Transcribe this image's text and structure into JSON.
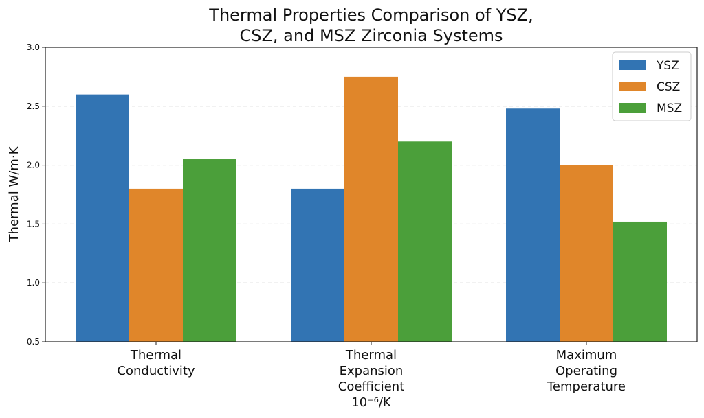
{
  "chart_data": {
    "type": "bar",
    "title_lines": [
      "Thermal Properties Comparison of YSZ,",
      "CSZ, and MSZ Zirconia Systems"
    ],
    "ylabel": "Thermal W/m·K",
    "xlabel": "",
    "ylim": [
      0.5,
      3.0
    ],
    "yticks": [
      "0.5",
      "1.0",
      "1.5",
      "2.0",
      "2.5",
      "3.0"
    ],
    "ytick_values": [
      0.5,
      1.0,
      1.5,
      2.0,
      2.5,
      3.0
    ],
    "categories": [
      [
        "Thermal",
        "Conductivity"
      ],
      [
        "Thermal",
        "Expansion",
        "Coefficient",
        "10⁻⁶/K"
      ],
      [
        "Maximum",
        "Operating",
        "Temperature"
      ]
    ],
    "series": [
      {
        "name": "YSZ",
        "color": "#3274b3",
        "values": [
          2.6,
          1.8,
          2.48
        ]
      },
      {
        "name": "CSZ",
        "color": "#e0862a",
        "values": [
          1.8,
          2.75,
          2.0
        ]
      },
      {
        "name": "MSZ",
        "color": "#4b9f3a",
        "values": [
          2.05,
          2.2,
          1.52
        ]
      }
    ],
    "grid": "y, dashed",
    "legend_position": "top-right"
  }
}
